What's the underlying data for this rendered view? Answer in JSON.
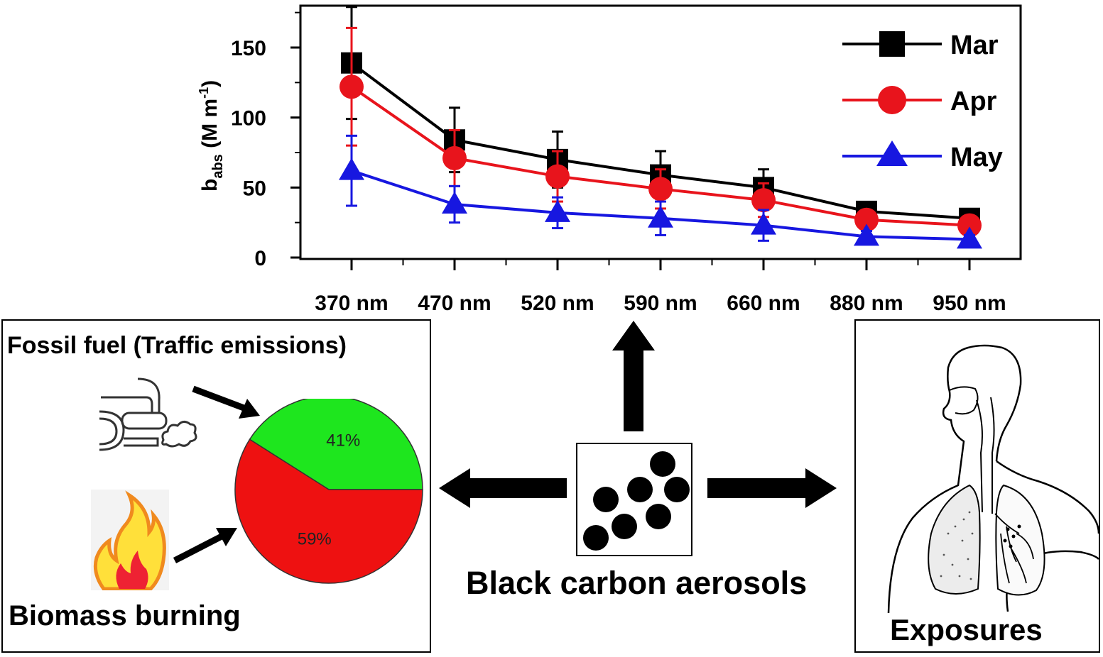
{
  "chart_data": {
    "type": "line",
    "categories": [
      "370 nm",
      "470 nm",
      "520 nm",
      "590 nm",
      "660 nm",
      "880 nm",
      "950 nm"
    ],
    "ylabel_main": "b",
    "ylabel_sub": "abs",
    "ylabel_units": " (M m",
    "ylabel_sup": "-1",
    "ylabel_close": ")",
    "ylim": [
      0,
      180
    ],
    "yticks": [
      0,
      50,
      100,
      150
    ],
    "legend_position": "top-right",
    "series": [
      {
        "name": "Mar",
        "color": "#000000",
        "marker": "square",
        "values": [
          139,
          84,
          70,
          59,
          50,
          33,
          28
        ],
        "errors": [
          40,
          23,
          20,
          17,
          13,
          5,
          4
        ]
      },
      {
        "name": "Apr",
        "color": "#e8141c",
        "marker": "circle",
        "values": [
          122,
          71,
          58,
          49,
          41,
          27,
          23
        ],
        "errors": [
          42,
          20,
          18,
          14,
          12,
          5,
          4
        ]
      },
      {
        "name": "May",
        "color": "#1717e0",
        "marker": "triangle",
        "values": [
          62,
          38,
          32,
          28,
          23,
          15,
          13
        ],
        "errors": [
          25,
          13,
          11,
          12,
          11,
          4,
          3
        ]
      }
    ]
  },
  "pie": {
    "slices": [
      {
        "label": "41%",
        "value": 41,
        "color": "#1ee61e"
      },
      {
        "label": "59%",
        "value": 59,
        "color": "#ee1111"
      }
    ]
  },
  "labels": {
    "fossil_fuel": "Fossil fuel (Traffic emissions)",
    "biomass": "Biomass burning",
    "black_carbon": "Black carbon aerosols",
    "exposures": "Exposures"
  }
}
